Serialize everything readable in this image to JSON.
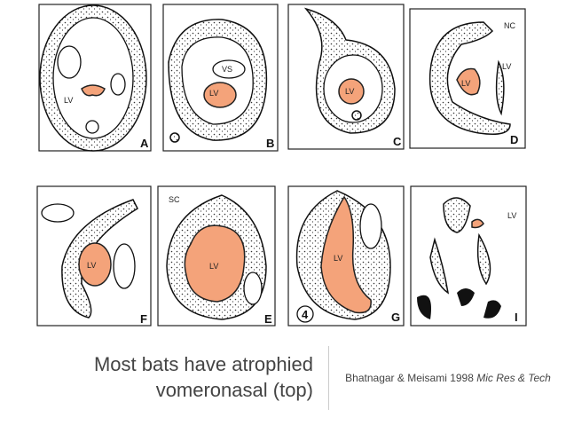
{
  "panels": [
    {
      "letter": "A",
      "labels": [
        "LV"
      ]
    },
    {
      "letter": "B",
      "labels": [
        "VS",
        "LV"
      ]
    },
    {
      "letter": "C",
      "labels": [
        "LV"
      ]
    },
    {
      "letter": "D",
      "labels": [
        "NC",
        "LV",
        "LV"
      ]
    },
    {
      "letter": "F",
      "labels": [
        "LV"
      ]
    },
    {
      "letter": "E",
      "labels": [
        "SC",
        "LV"
      ]
    },
    {
      "letter": "G",
      "labels": [
        "4",
        "LV"
      ]
    },
    {
      "letter": "I",
      "labels": [
        "LV"
      ]
    }
  ],
  "caption": {
    "line1": "Most bats have atrophied",
    "line2": "vomeronasal (top)"
  },
  "citation": {
    "authors": "Bhatnagar & Meisami 1998",
    "journal": "Mic Res & Tech"
  }
}
